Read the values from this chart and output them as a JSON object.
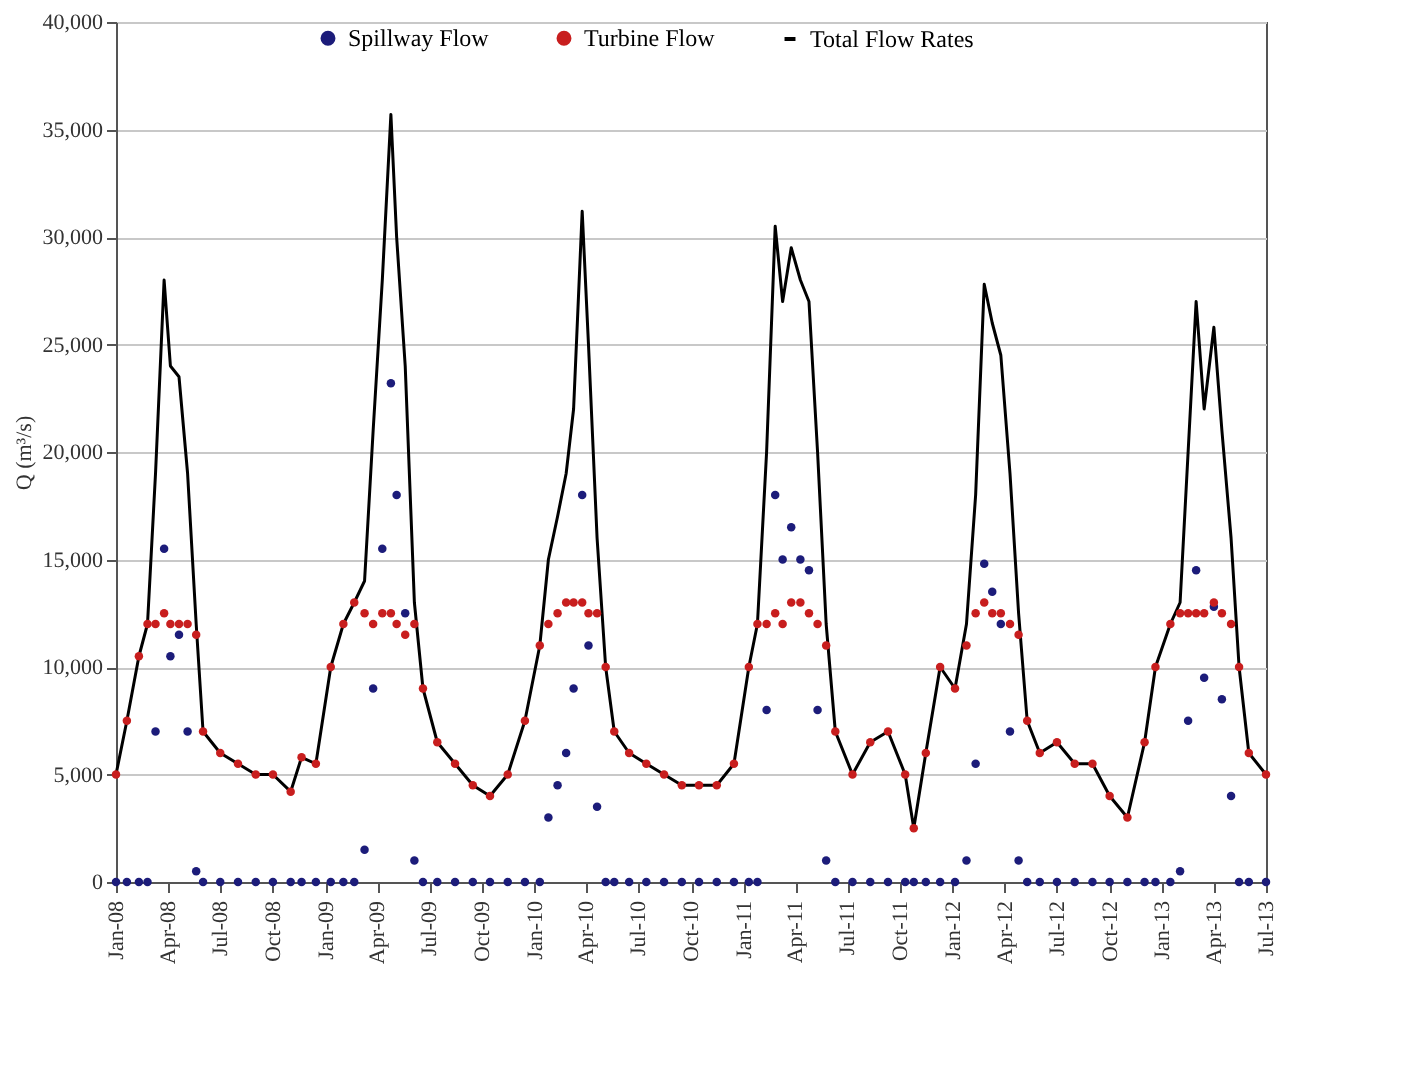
{
  "chart_data": {
    "type": "scatter",
    "ylabel": "Q (m³/s)",
    "legend": "top",
    "grid": "y",
    "marker": "circle",
    "x": [
      "2008-01-01",
      "2008-01-20",
      "2008-02-10",
      "2008-02-25",
      "2008-03-10",
      "2008-03-25",
      "2008-04-05",
      "2008-04-20",
      "2008-05-05",
      "2008-05-20",
      "2008-06-01",
      "2008-07-01",
      "2008-08-01",
      "2008-09-01",
      "2008-10-01",
      "2008-11-01",
      "2008-11-20",
      "2008-12-15",
      "2009-01-10",
      "2009-02-01",
      "2009-02-20",
      "2009-03-10",
      "2009-03-25",
      "2009-04-10",
      "2009-04-25",
      "2009-05-05",
      "2009-05-20",
      "2009-06-05",
      "2009-06-20",
      "2009-07-15",
      "2009-08-15",
      "2009-09-15",
      "2009-10-15",
      "2009-11-15",
      "2009-12-15",
      "2010-01-10",
      "2010-01-25",
      "2010-02-10",
      "2010-02-25",
      "2010-03-10",
      "2010-03-25",
      "2010-04-05",
      "2010-04-20",
      "2010-05-05",
      "2010-05-20",
      "2010-06-15",
      "2010-07-15",
      "2010-08-15",
      "2010-09-15",
      "2010-10-15",
      "2010-11-15",
      "2010-12-15",
      "2011-01-10",
      "2011-01-25",
      "2011-02-10",
      "2011-02-25",
      "2011-03-10",
      "2011-03-25",
      "2011-04-10",
      "2011-04-25",
      "2011-05-10",
      "2011-05-25",
      "2011-06-10",
      "2011-07-10",
      "2011-08-10",
      "2011-09-10",
      "2011-10-10",
      "2011-10-25",
      "2011-11-15",
      "2011-12-10",
      "2012-01-05",
      "2012-01-25",
      "2012-02-10",
      "2012-02-25",
      "2012-03-10",
      "2012-03-25",
      "2012-04-10",
      "2012-04-25",
      "2012-05-10",
      "2012-06-01",
      "2012-07-01",
      "2012-08-01",
      "2012-09-01",
      "2012-10-01",
      "2012-11-01",
      "2012-12-01",
      "2012-12-20",
      "2013-01-15",
      "2013-02-01",
      "2013-02-15",
      "2013-03-01",
      "2013-03-15",
      "2013-04-01",
      "2013-04-15",
      "2013-05-01",
      "2013-05-15",
      "2013-06-01",
      "2013-07-01"
    ],
    "series": [
      {
        "name": "Spillway Flow",
        "color": "#1c1c7a",
        "values": [
          0,
          0,
          0,
          0,
          7000,
          15500,
          10500,
          11500,
          7000,
          500,
          0,
          0,
          0,
          0,
          0,
          0,
          0,
          0,
          0,
          0,
          0,
          1500,
          9000,
          15500,
          23200,
          18000,
          12500,
          1000,
          0,
          0,
          0,
          0,
          0,
          0,
          0,
          0,
          3000,
          4500,
          6000,
          9000,
          18000,
          11000,
          3500,
          0,
          0,
          0,
          0,
          0,
          0,
          0,
          0,
          0,
          0,
          0,
          8000,
          18000,
          15000,
          16500,
          15000,
          14500,
          8000,
          1000,
          0,
          0,
          0,
          0,
          0,
          0,
          0,
          0,
          0,
          1000,
          5500,
          14800,
          13500,
          12000,
          7000,
          1000,
          0,
          0,
          0,
          0,
          0,
          0,
          0,
          0,
          0,
          0,
          500,
          7500,
          14500,
          9500,
          12800,
          8500,
          4000,
          0,
          0,
          0
        ]
      },
      {
        "name": "Turbine Flow",
        "color": "#c81e1e",
        "values": [
          5000,
          7500,
          10500,
          12000,
          12000,
          12500,
          12000,
          12000,
          12000,
          11500,
          7000,
          6000,
          5500,
          5000,
          5000,
          4200,
          5800,
          5500,
          10000,
          12000,
          13000,
          12500,
          12000,
          12500,
          12500,
          12000,
          11500,
          12000,
          9000,
          6500,
          5500,
          4500,
          4000,
          5000,
          7500,
          11000,
          12000,
          12500,
          13000,
          13000,
          13000,
          12500,
          12500,
          10000,
          7000,
          6000,
          5500,
          5000,
          4500,
          4500,
          4500,
          5500,
          10000,
          12000,
          12000,
          12500,
          12000,
          13000,
          13000,
          12500,
          12000,
          11000,
          7000,
          5000,
          6500,
          7000,
          5000,
          2500,
          6000,
          10000,
          9000,
          11000,
          12500,
          13000,
          12500,
          12500,
          12000,
          11500,
          7500,
          6000,
          6500,
          5500,
          5500,
          4000,
          3000,
          6500,
          10000,
          12000,
          12500,
          12500,
          12500,
          12500,
          13000,
          12500,
          12000,
          10000,
          6000,
          5000
        ]
      },
      {
        "name": "Total Flow Rates",
        "color": "#000000",
        "type": "line",
        "marker": "none",
        "line_style": "solid",
        "values": [
          5000,
          7500,
          10500,
          12000,
          19000,
          28000,
          24000,
          23500,
          19000,
          12000,
          7000,
          6000,
          5500,
          5000,
          5000,
          4200,
          5800,
          5500,
          10000,
          12000,
          13000,
          14000,
          21000,
          28000,
          35700,
          30000,
          24000,
          13000,
          9000,
          6500,
          5500,
          4500,
          4000,
          5000,
          7500,
          11000,
          15000,
          17000,
          19000,
          22000,
          31200,
          25000,
          16000,
          10000,
          7000,
          6000,
          5500,
          5000,
          4500,
          4500,
          4500,
          5500,
          10000,
          12000,
          20000,
          30500,
          27000,
          29500,
          28000,
          27000,
          20000,
          12000,
          7000,
          5000,
          6500,
          7000,
          5000,
          2500,
          6000,
          10000,
          9000,
          12000,
          18000,
          27800,
          26000,
          24500,
          19000,
          12500,
          7500,
          6000,
          6500,
          5500,
          5500,
          4000,
          3000,
          6500,
          10000,
          12000,
          13000,
          20000,
          27000,
          22000,
          25800,
          21000,
          16000,
          10000,
          6000,
          5000
        ]
      }
    ],
    "xlim": [
      "2008-01-01",
      "2013-07-01"
    ],
    "xticks": [
      {
        "value": "2008-01-01",
        "label": "Jan-08"
      },
      {
        "value": "2008-04-01",
        "label": "Apr-08"
      },
      {
        "value": "2008-07-01",
        "label": "Jul-08"
      },
      {
        "value": "2008-10-01",
        "label": "Oct-08"
      },
      {
        "value": "2009-01-01",
        "label": "Jan-09"
      },
      {
        "value": "2009-04-01",
        "label": "Apr-09"
      },
      {
        "value": "2009-07-01",
        "label": "Jul-09"
      },
      {
        "value": "2009-10-01",
        "label": "Oct-09"
      },
      {
        "value": "2010-01-01",
        "label": "Jan-10"
      },
      {
        "value": "2010-04-01",
        "label": "Apr-10"
      },
      {
        "value": "2010-07-01",
        "label": "Jul-10"
      },
      {
        "value": "2010-10-01",
        "label": "Oct-10"
      },
      {
        "value": "2011-01-01",
        "label": "Jan-11"
      },
      {
        "value": "2011-04-01",
        "label": "Apr-11"
      },
      {
        "value": "2011-07-01",
        "label": "Jul-11"
      },
      {
        "value": "2011-10-01",
        "label": "Oct-11"
      },
      {
        "value": "2012-01-01",
        "label": "Jan-12"
      },
      {
        "value": "2012-04-01",
        "label": "Apr-12"
      },
      {
        "value": "2012-07-01",
        "label": "Jul-12"
      },
      {
        "value": "2012-10-01",
        "label": "Oct-12"
      },
      {
        "value": "2013-01-01",
        "label": "Jan-13"
      },
      {
        "value": "2013-04-01",
        "label": "Apr-13"
      },
      {
        "value": "2013-07-01",
        "label": "Jul-13"
      }
    ],
    "ylim": [
      0,
      40000
    ],
    "yticks": [
      {
        "value": 0,
        "label": "0"
      },
      {
        "value": 5000,
        "label": "5,000"
      },
      {
        "value": 10000,
        "label": "10,000"
      },
      {
        "value": 15000,
        "label": "15,000"
      },
      {
        "value": 20000,
        "label": "20,000"
      },
      {
        "value": 25000,
        "label": "25,000"
      },
      {
        "value": 30000,
        "label": "30,000"
      },
      {
        "value": 35000,
        "label": "35,000"
      },
      {
        "value": 40000,
        "label": "40,000"
      }
    ]
  }
}
